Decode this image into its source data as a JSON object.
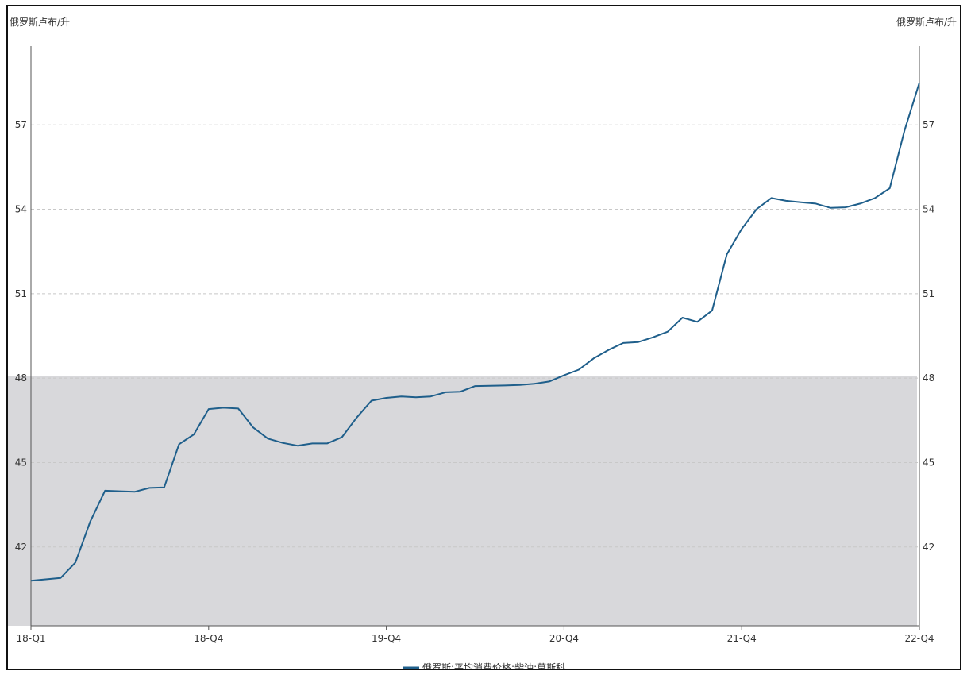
{
  "chart_data": {
    "type": "line",
    "unit_left": "俄罗斯卢布/升",
    "unit_right": "俄罗斯卢布/升",
    "ylim": [
      39.2,
      59.8
    ],
    "y_ticks": [
      "42",
      "45",
      "48",
      "51",
      "54",
      "57"
    ],
    "x_tick_labels": [
      "18-Q1",
      "18-Q4",
      "19-Q4",
      "20-Q4",
      "21-Q4",
      "22-Q4"
    ],
    "grid": "horizontal-dashed",
    "legend_position": "bottom-center",
    "series": [
      {
        "name": "俄罗斯:平均消费价格:柴油:莫斯科",
        "color": "#1f5f8b",
        "values": [
          40.8,
          40.85,
          40.9,
          41.45,
          42.9,
          44.0,
          43.98,
          43.96,
          44.1,
          44.12,
          45.65,
          46.0,
          46.9,
          46.95,
          46.92,
          46.25,
          45.85,
          45.7,
          45.6,
          45.68,
          45.68,
          45.9,
          46.6,
          47.2,
          47.3,
          47.35,
          47.32,
          47.35,
          47.5,
          47.52,
          47.72,
          47.73,
          47.74,
          47.76,
          47.8,
          47.88,
          48.1,
          48.3,
          48.7,
          49.0,
          49.25,
          49.28,
          49.45,
          49.65,
          50.15,
          50.0,
          50.4,
          52.4,
          53.3,
          54.0,
          54.4,
          54.3,
          54.25,
          54.2,
          54.05,
          54.07,
          54.2,
          54.4,
          54.75,
          56.8,
          58.5
        ]
      }
    ]
  }
}
